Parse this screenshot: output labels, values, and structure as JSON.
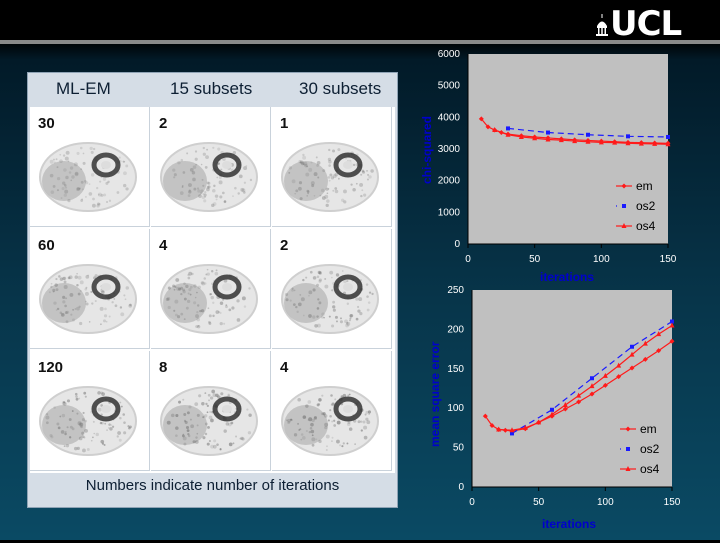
{
  "logo": {
    "text": "UCL"
  },
  "panel": {
    "headers": [
      "ML-EM",
      "15 subsets",
      "30 subsets"
    ],
    "rows": [
      [
        "30",
        "2",
        "1"
      ],
      [
        "60",
        "4",
        "2"
      ],
      [
        "120",
        "8",
        "4"
      ]
    ],
    "footer": "Numbers indicate number of iterations"
  },
  "colors": {
    "em": "#ff1a1a",
    "os2": "#1a1aff",
    "os4": "#ff1a1a",
    "plot_bg": "#c0c0c0",
    "axis_title": "#0000cc"
  },
  "chart_data": [
    {
      "type": "line",
      "title": "",
      "xlabel": "iterations",
      "ylabel": "chi-squared",
      "xlim": [
        0,
        150
      ],
      "ylim": [
        0,
        6000
      ],
      "xticks": [
        "0",
        "50",
        "100",
        "150"
      ],
      "yticks": [
        "0",
        "1000",
        "2000",
        "3000",
        "4000",
        "5000",
        "6000"
      ],
      "legend": "right-bottom",
      "series": [
        {
          "name": "em",
          "x": [
            10,
            15,
            20,
            25,
            30,
            40,
            50,
            60,
            70,
            80,
            90,
            100,
            110,
            120,
            130,
            140,
            150
          ],
          "y": [
            3950,
            3700,
            3600,
            3520,
            3470,
            3420,
            3380,
            3350,
            3320,
            3290,
            3270,
            3250,
            3230,
            3210,
            3200,
            3190,
            3180
          ]
        },
        {
          "name": "os2",
          "x": [
            30,
            60,
            90,
            120,
            150
          ],
          "y": [
            3650,
            3520,
            3450,
            3400,
            3380
          ]
        },
        {
          "name": "os4",
          "x": [
            20,
            30,
            40,
            50,
            60,
            70,
            80,
            90,
            100,
            110,
            120,
            130,
            140,
            150
          ],
          "y": [
            3600,
            3450,
            3380,
            3340,
            3300,
            3280,
            3250,
            3230,
            3210,
            3200,
            3180,
            3170,
            3160,
            3150
          ]
        }
      ]
    },
    {
      "type": "line",
      "title": "",
      "xlabel": "iterations",
      "ylabel": "mean square error",
      "xlim": [
        0,
        150
      ],
      "ylim": [
        0,
        250
      ],
      "xticks": [
        "0",
        "50",
        "100",
        "150"
      ],
      "yticks": [
        "0",
        "50",
        "100",
        "150",
        "200",
        "250"
      ],
      "legend": "right-bottom",
      "series": [
        {
          "name": "em",
          "x": [
            10,
            15,
            20,
            25,
            30,
            40,
            50,
            60,
            70,
            80,
            90,
            100,
            110,
            120,
            130,
            140,
            150
          ],
          "y": [
            90,
            78,
            73,
            72,
            71,
            74,
            82,
            90,
            99,
            108,
            118,
            129,
            140,
            151,
            162,
            173,
            185
          ]
        },
        {
          "name": "os2",
          "x": [
            30,
            60,
            90,
            120,
            150
          ],
          "y": [
            68,
            98,
            138,
            178,
            210
          ]
        },
        {
          "name": "os4",
          "x": [
            20,
            30,
            40,
            50,
            60,
            70,
            80,
            90,
            100,
            110,
            120,
            130,
            140,
            150
          ],
          "y": [
            73,
            72,
            75,
            82,
            92,
            104,
            116,
            128,
            141,
            154,
            168,
            182,
            194,
            205
          ]
        }
      ]
    }
  ]
}
